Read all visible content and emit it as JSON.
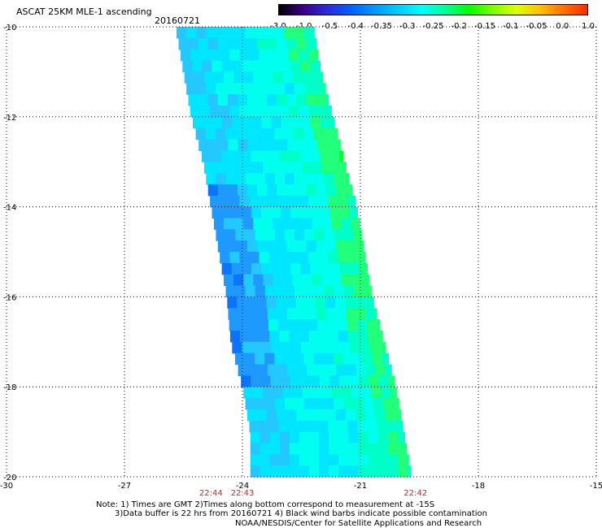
{
  "header": {
    "title": "ASCAT 25KM MLE-1 ascending",
    "date": "20160721"
  },
  "colorbar": {
    "labels": [
      "-3.0",
      "-1.0",
      "-0.5",
      "-0.4",
      "-0.35",
      "-0.3",
      "-0.25",
      "-0.2",
      "-0.15",
      "-0.1",
      "-0.05",
      "0.0",
      "1.0"
    ],
    "colors": [
      "#000000",
      "#3a0088",
      "#2a2ad8",
      "#0060ff",
      "#0098ff",
      "#00ccff",
      "#00ffff",
      "#00ff9a",
      "#00ff00",
      "#7cff00",
      "#e0ff00",
      "#ffc000",
      "#ff7000",
      "#ff2a00"
    ]
  },
  "chart_data": {
    "type": "heatmap",
    "title": "ASCAT 25KM MLE-1 ascending",
    "xlim": [
      -30,
      -15
    ],
    "ylim": [
      -20,
      -10
    ],
    "x_ticks": [
      "-30",
      "-27",
      "-24",
      "-21",
      "-18",
      "-15"
    ],
    "y_ticks": [
      "-10",
      "-12",
      "-14",
      "-16",
      "-18",
      "-20"
    ],
    "x_tick_values": [
      -30,
      -27,
      -24,
      -21,
      -18,
      -15
    ],
    "y_tick_values": [
      -10,
      -12,
      -14,
      -16,
      -18,
      -20
    ],
    "grid": true,
    "swath_left_edge": [
      [
        -10,
        -25.7
      ],
      [
        -11,
        -25.5
      ],
      [
        -12,
        -25.3
      ],
      [
        -13,
        -25.0
      ],
      [
        -14,
        -24.8
      ],
      [
        -15,
        -24.6
      ],
      [
        -16,
        -24.4
      ],
      [
        -17,
        -24.3
      ],
      [
        -18,
        -24.0
      ],
      [
        -19,
        -23.8
      ],
      [
        -20,
        -23.8
      ]
    ],
    "swath_right_edge": [
      [
        -10,
        -22.2
      ],
      [
        -11,
        -22.0
      ],
      [
        -12,
        -21.7
      ],
      [
        -13,
        -21.4
      ],
      [
        -14,
        -21.1
      ],
      [
        -15,
        -20.9
      ],
      [
        -16,
        -20.7
      ],
      [
        -17,
        -20.4
      ],
      [
        -18,
        -20.1
      ],
      [
        -19,
        -19.9
      ],
      [
        -20,
        -19.7
      ]
    ],
    "time_labels": [
      {
        "x": -24.8,
        "label": "22:44"
      },
      {
        "x": -24.0,
        "label": "22:43"
      },
      {
        "x": -19.6,
        "label": "22:42"
      }
    ]
  },
  "notes": {
    "line1": "Note: 1) Times are GMT 2)Times along bottom correspond to measurement at -15S",
    "line2": "3)Data buffer is 22 hrs from 20160721 4) Black wind barbs indicate possible contamination",
    "line3": "NOAA/NESDIS/Center for Satellite Applications and Research"
  }
}
